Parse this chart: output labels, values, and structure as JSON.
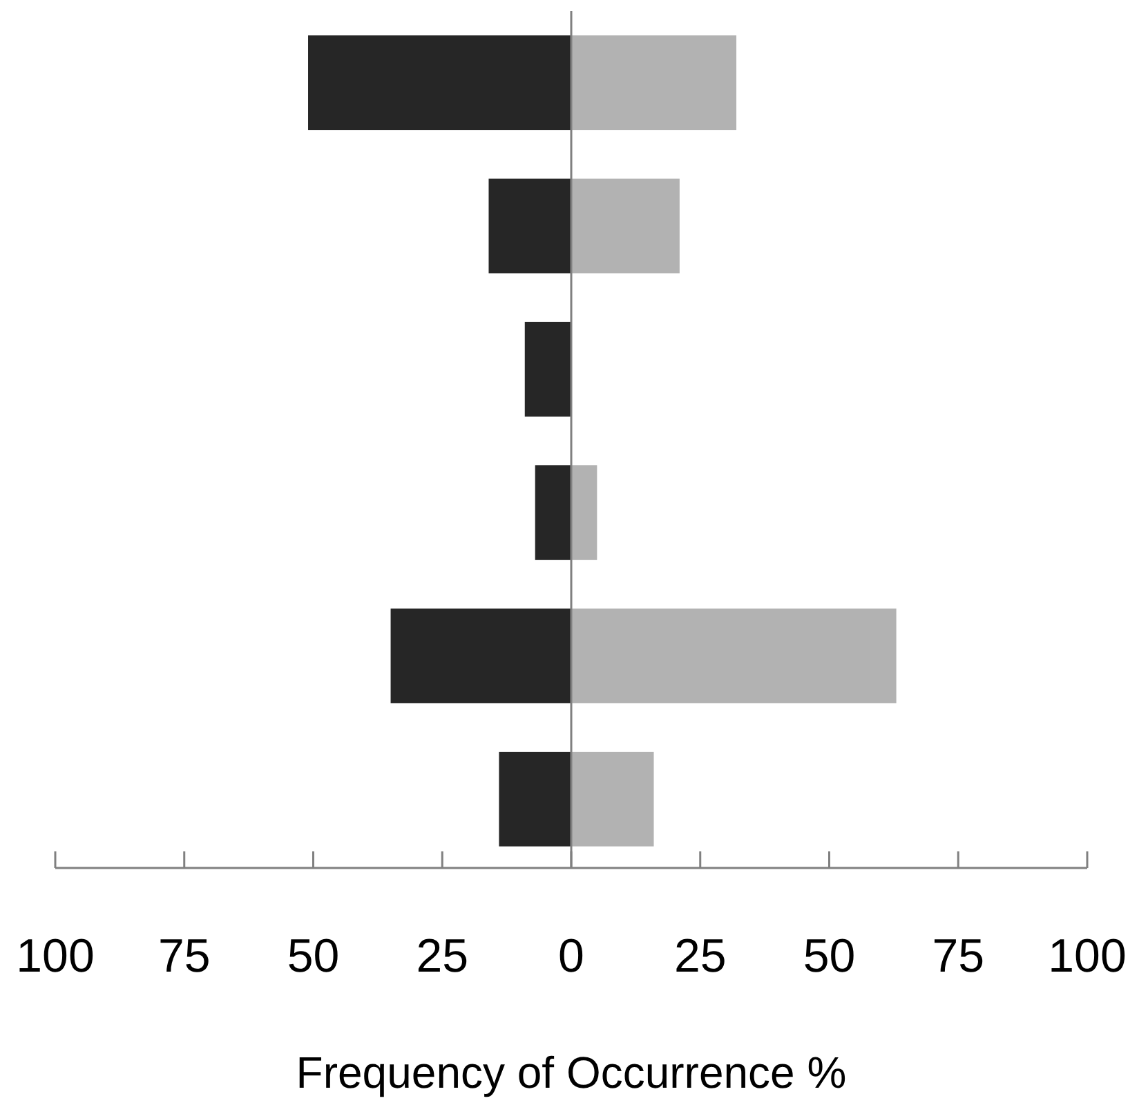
{
  "chart_data": {
    "type": "bar",
    "orientation": "horizontal",
    "stacked": true,
    "xlabel": "Frequency of Occurrence %",
    "categories": [
      null,
      null,
      null,
      null,
      null,
      null
    ],
    "series": [
      {
        "color": "#262626",
        "values": [
          -51,
          -16,
          -9,
          -7,
          -35,
          -14
        ]
      },
      {
        "color": "#b2b2b2",
        "values": [
          32,
          21,
          0,
          5,
          63,
          16
        ]
      }
    ],
    "xlim": [
      -100,
      100
    ],
    "xticks": [
      {
        "value": -100,
        "label": "100"
      },
      {
        "value": -75,
        "label": "75"
      },
      {
        "value": -50,
        "label": "50"
      },
      {
        "value": -25,
        "label": "25"
      },
      0,
      25,
      50,
      75,
      100
    ]
  }
}
